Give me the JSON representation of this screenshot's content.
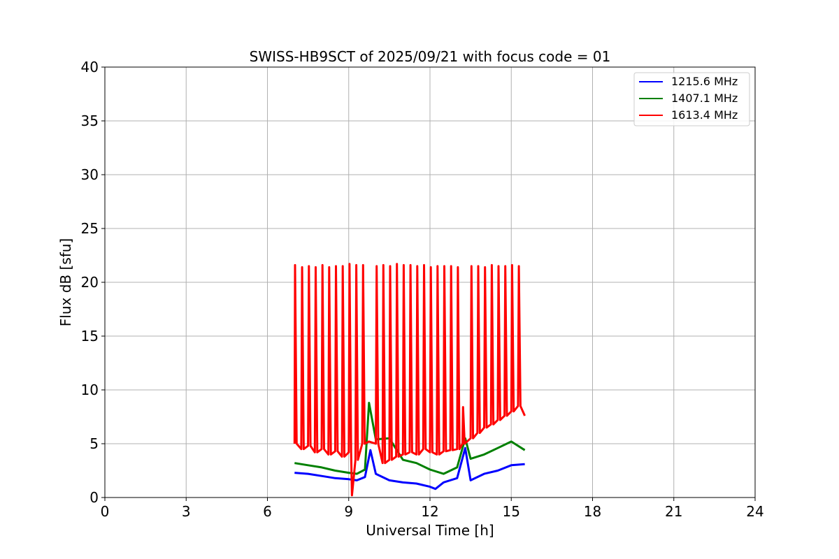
{
  "chart_data": {
    "type": "line",
    "title": "SWISS-HB9SCT of 2025/09/21 with focus code = 01",
    "xlabel": "Universal Time [h]",
    "ylabel": "Flux dB [sfu]",
    "xlim": [
      0,
      24
    ],
    "ylim": [
      0,
      40
    ],
    "xticks": [
      0,
      3,
      6,
      9,
      12,
      15,
      18,
      21,
      24
    ],
    "yticks": [
      0,
      5,
      10,
      15,
      20,
      25,
      30,
      35,
      40
    ],
    "grid": true,
    "legend_position": "top-right",
    "series": [
      {
        "name": "1215.6 MHz",
        "color": "#0000ff",
        "x": [
          7.0,
          7.5,
          8.0,
          8.5,
          9.0,
          9.3,
          9.6,
          9.8,
          10.0,
          10.5,
          11.0,
          11.5,
          12.0,
          12.2,
          12.5,
          13.0,
          13.3,
          13.5,
          14.0,
          14.5,
          15.0,
          15.5
        ],
        "y": [
          2.3,
          2.2,
          2.0,
          1.8,
          1.7,
          1.6,
          1.9,
          4.4,
          2.2,
          1.6,
          1.4,
          1.3,
          1.0,
          0.8,
          1.4,
          1.8,
          4.6,
          1.6,
          2.2,
          2.5,
          3.0,
          3.1
        ]
      },
      {
        "name": "1407.1 MHz",
        "color": "#008000",
        "x": [
          7.0,
          7.5,
          8.0,
          8.5,
          9.0,
          9.3,
          9.6,
          9.75,
          10.0,
          10.5,
          11.0,
          11.5,
          12.0,
          12.5,
          13.0,
          13.3,
          13.5,
          14.0,
          14.5,
          15.0,
          15.5
        ],
        "y": [
          3.2,
          3.0,
          2.8,
          2.5,
          2.3,
          2.2,
          2.6,
          8.8,
          5.4,
          5.5,
          3.5,
          3.2,
          2.6,
          2.2,
          2.8,
          5.5,
          3.6,
          4.0,
          4.6,
          5.2,
          4.4
        ]
      },
      {
        "name": "1613.4 MHz",
        "color": "#ff0000",
        "x": [
          7.0,
          7.02,
          7.08,
          7.25,
          7.28,
          7.34,
          7.5,
          7.53,
          7.59,
          7.75,
          7.78,
          7.84,
          8.0,
          8.03,
          8.09,
          8.25,
          8.28,
          8.34,
          8.5,
          8.53,
          8.59,
          8.75,
          8.78,
          8.84,
          9.0,
          9.03,
          9.09,
          9.12,
          9.25,
          9.28,
          9.34,
          9.5,
          9.53,
          9.59,
          9.75,
          10.0,
          10.03,
          10.09,
          10.25,
          10.28,
          10.34,
          10.5,
          10.53,
          10.59,
          10.75,
          10.78,
          10.84,
          11.0,
          11.03,
          11.09,
          11.25,
          11.28,
          11.34,
          11.5,
          11.53,
          11.59,
          11.75,
          11.78,
          11.84,
          12.0,
          12.03,
          12.09,
          12.25,
          12.28,
          12.34,
          12.5,
          12.53,
          12.59,
          12.75,
          12.78,
          12.84,
          13.0,
          13.03,
          13.09,
          13.2,
          13.22,
          13.28,
          13.5,
          13.53,
          13.59,
          13.75,
          13.78,
          13.84,
          14.0,
          14.03,
          14.09,
          14.25,
          14.28,
          14.34,
          14.5,
          14.53,
          14.59,
          14.75,
          14.78,
          14.84,
          15.0,
          15.03,
          15.09,
          15.25,
          15.28,
          15.34,
          15.5
        ],
        "y": [
          5.0,
          21.6,
          5.0,
          4.5,
          21.4,
          4.5,
          4.8,
          21.5,
          4.8,
          4.2,
          21.4,
          4.2,
          4.5,
          21.6,
          4.5,
          4.0,
          21.4,
          4.0,
          4.3,
          21.5,
          4.3,
          3.8,
          21.5,
          3.8,
          4.2,
          21.7,
          4.2,
          0.2,
          3.5,
          21.6,
          3.5,
          5.0,
          21.6,
          5.0,
          5.2,
          5.0,
          21.5,
          5.0,
          3.2,
          21.6,
          3.2,
          3.5,
          21.5,
          3.5,
          3.8,
          21.7,
          3.8,
          4.0,
          21.6,
          4.0,
          4.2,
          21.6,
          4.2,
          4.0,
          21.5,
          4.0,
          4.5,
          21.6,
          4.5,
          4.2,
          21.4,
          4.2,
          4.0,
          21.5,
          4.0,
          4.3,
          21.5,
          4.3,
          4.4,
          21.5,
          4.4,
          4.5,
          21.4,
          4.5,
          5.0,
          8.4,
          5.0,
          5.5,
          21.5,
          5.5,
          6.0,
          21.5,
          6.0,
          6.5,
          21.4,
          6.5,
          6.8,
          21.6,
          6.8,
          7.2,
          21.5,
          7.2,
          7.6,
          21.5,
          7.6,
          8.0,
          21.6,
          8.0,
          8.5,
          21.5,
          8.5,
          7.6
        ]
      }
    ]
  }
}
